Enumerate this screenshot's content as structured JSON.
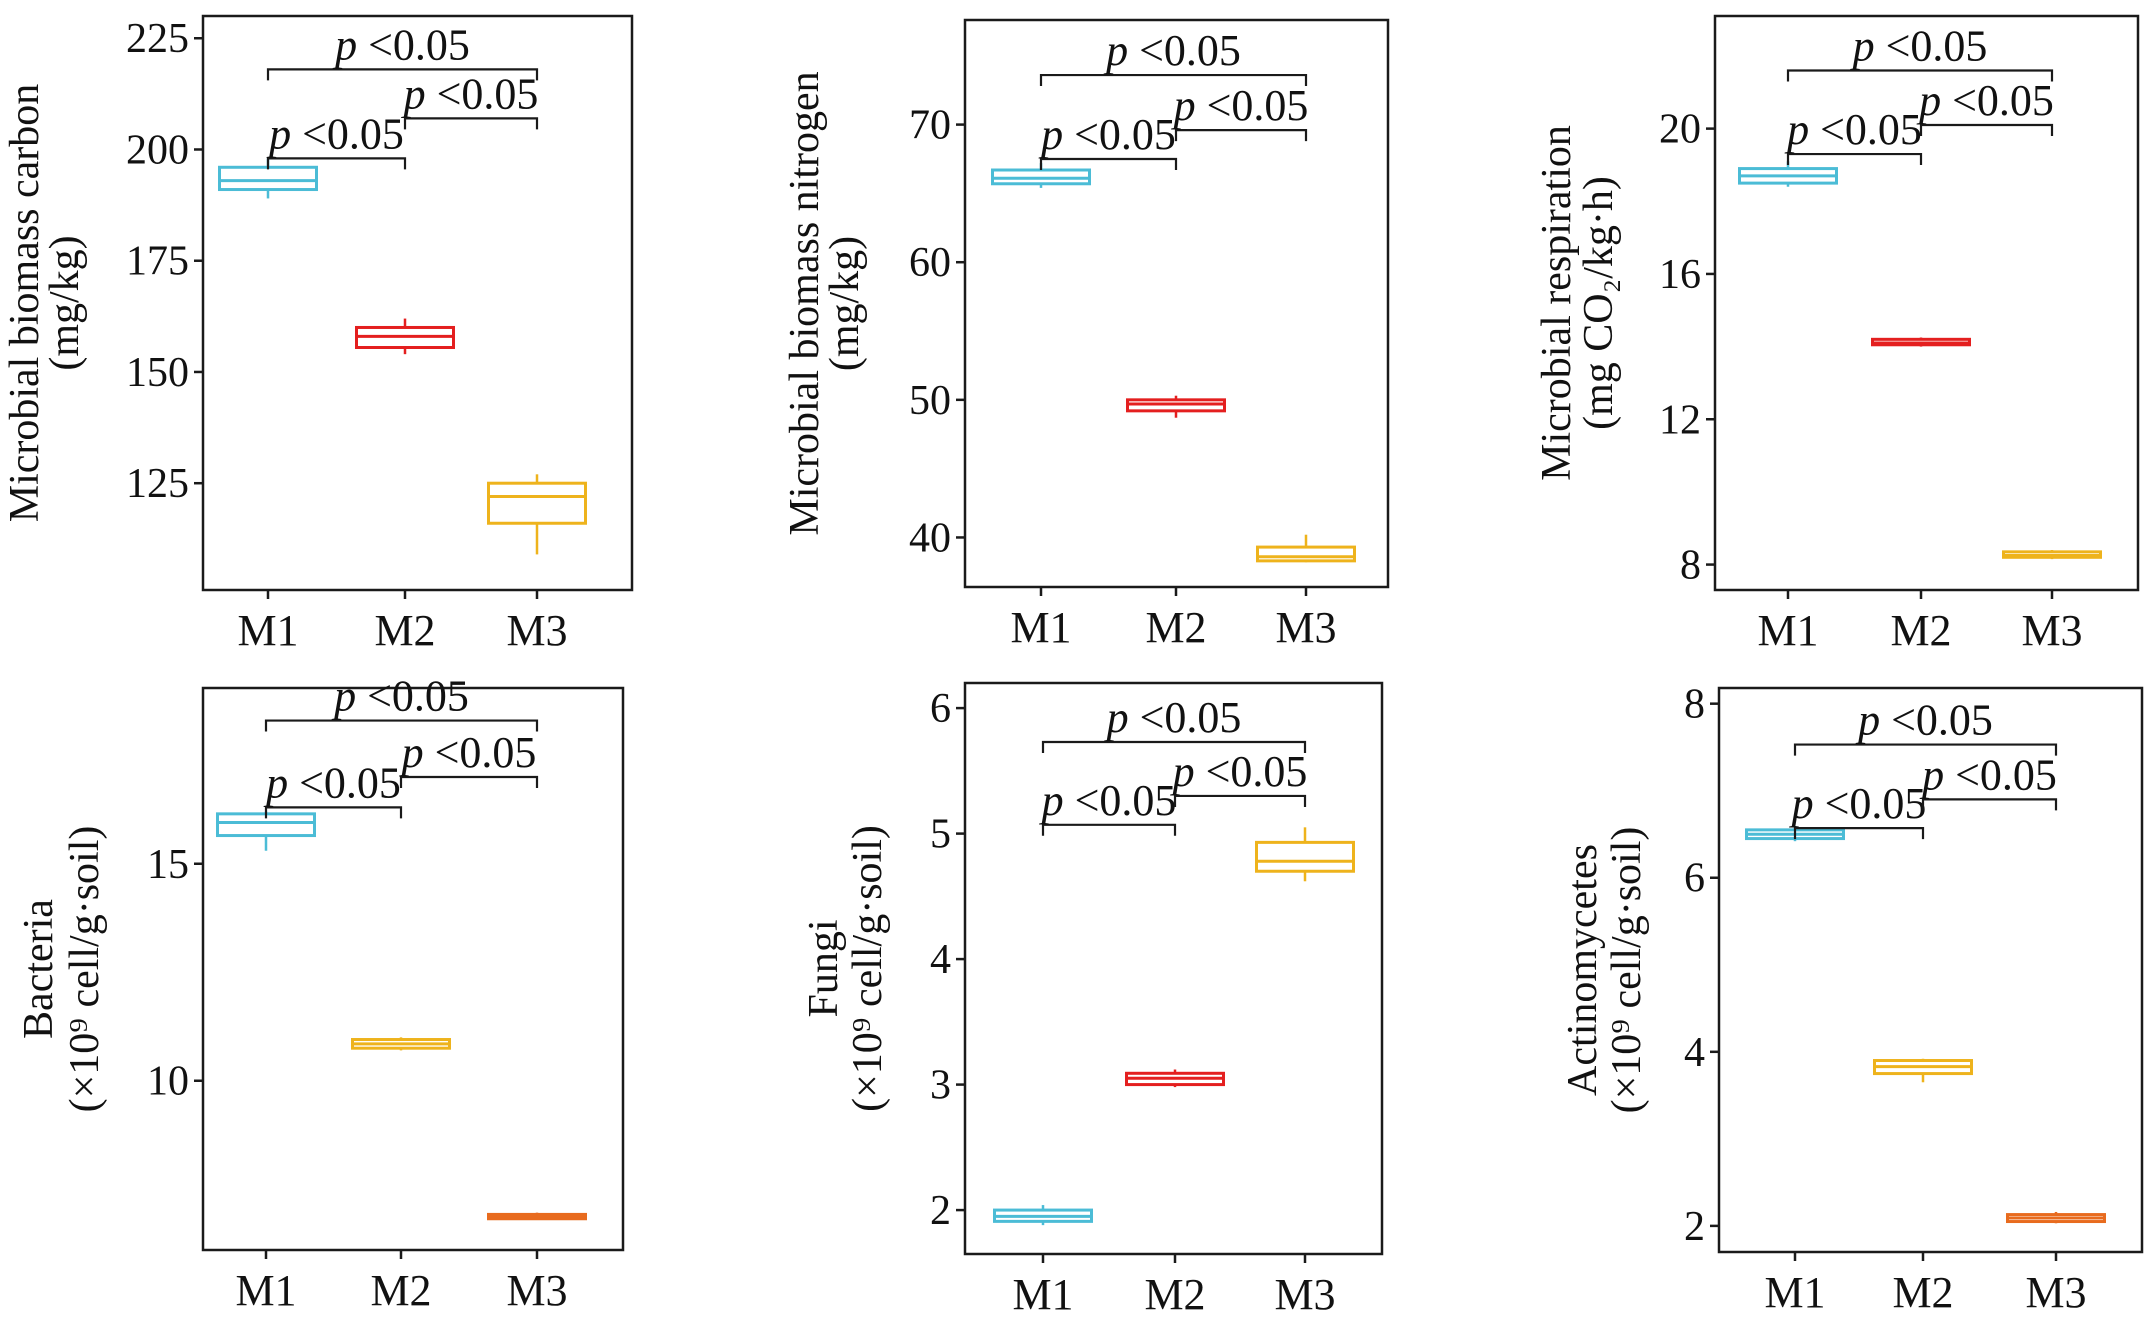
{
  "chart_data": [
    {
      "type": "box",
      "ylabel_line1": "Microbial biomass carbon",
      "ylabel_line2": "(mg/kg)",
      "categories": [
        "M1",
        "M2",
        "M3"
      ],
      "colors": [
        "#4bbcd6",
        "#e41f1f",
        "#eeb31c"
      ],
      "ylim": [
        101,
        230
      ],
      "yticks": [
        "125",
        "150",
        "175",
        "200",
        "225"
      ],
      "boxes": [
        {
          "min": 189,
          "q1": 191,
          "median": 193,
          "q3": 196,
          "max": 198
        },
        {
          "min": 154,
          "q1": 155.5,
          "median": 158,
          "q3": 160,
          "max": 162
        },
        {
          "min": 109,
          "q1": 116,
          "median": 122,
          "q3": 125,
          "max": 127
        }
      ],
      "brackets": [
        {
          "from": 0,
          "to": 2,
          "level": 218,
          "text": "<0.05"
        },
        {
          "from": 0,
          "to": 1,
          "level": 198,
          "text": "<0.05"
        },
        {
          "from": 1,
          "to": 2,
          "level": 207,
          "text": "<0.05"
        }
      ]
    },
    {
      "type": "box",
      "ylabel_line1": "Microbial biomass nitrogen",
      "ylabel_line2": "(mg/kg)",
      "categories": [
        "M1",
        "M2",
        "M3"
      ],
      "colors": [
        "#4bbcd6",
        "#e41f1f",
        "#eeb31c"
      ],
      "ylim": [
        36.4,
        77.6
      ],
      "yticks": [
        "40",
        "50",
        "60",
        "70"
      ],
      "boxes": [
        {
          "min": 65.4,
          "q1": 65.7,
          "median": 66.1,
          "q3": 66.7,
          "max": 67.2
        },
        {
          "min": 48.7,
          "q1": 49.2,
          "median": 49.7,
          "q3": 50,
          "max": 50.3
        },
        {
          "min": 38.2,
          "q1": 38.3,
          "median": 38.6,
          "q3": 39.3,
          "max": 40.2
        }
      ],
      "brackets": [
        {
          "from": 0,
          "to": 2,
          "level": 73.6,
          "text": "<0.05"
        },
        {
          "from": 0,
          "to": 1,
          "level": 67.5,
          "text": "<0.05"
        },
        {
          "from": 1,
          "to": 2,
          "level": 69.6,
          "text": "<0.05"
        }
      ]
    },
    {
      "type": "box",
      "ylabel_line1": "Microbial respiration",
      "ylabel_line2": "(mg CO₂/kg·h)",
      "categories": [
        "M1",
        "M2",
        "M3"
      ],
      "colors": [
        "#4bbcd6",
        "#e41f1f",
        "#eeb31c"
      ],
      "ylim": [
        7.3,
        23.1
      ],
      "yticks": [
        "8",
        "12",
        "16",
        "20"
      ],
      "boxes": [
        {
          "min": 18.4,
          "q1": 18.5,
          "median": 18.7,
          "q3": 18.9,
          "max": 19.1
        },
        {
          "min": 14,
          "q1": 14.05,
          "median": 14.1,
          "q3": 14.2,
          "max": 14.25
        },
        {
          "min": 8.15,
          "q1": 8.2,
          "median": 8.25,
          "q3": 8.35,
          "max": 8.4
        }
      ],
      "brackets": [
        {
          "from": 0,
          "to": 2,
          "level": 21.6,
          "text": "<0.05"
        },
        {
          "from": 0,
          "to": 1,
          "level": 19.3,
          "text": "<0.05"
        },
        {
          "from": 1,
          "to": 2,
          "level": 20.1,
          "text": "<0.05"
        }
      ]
    },
    {
      "type": "box",
      "ylabel_line1": "Bacteria",
      "ylabel_line2": "(×10⁹ cell/g·soil)",
      "categories": [
        "M1",
        "M2",
        "M3"
      ],
      "colors": [
        "#4bbcd6",
        "#eeb31c",
        "#e86b1e"
      ],
      "ylim": [
        6.1,
        19.05
      ],
      "yticks": [
        "10",
        "15"
      ],
      "boxes": [
        {
          "min": 15.3,
          "q1": 15.65,
          "median": 15.95,
          "q3": 16.15,
          "max": 16.2
        },
        {
          "min": 10.7,
          "q1": 10.75,
          "median": 10.85,
          "q3": 10.95,
          "max": 11.0
        },
        {
          "min": 6.8,
          "q1": 6.82,
          "median": 6.87,
          "q3": 6.92,
          "max": 6.96
        }
      ],
      "brackets": [
        {
          "from": 0,
          "to": 2,
          "level": 18.3,
          "text": "<0.05"
        },
        {
          "from": 0,
          "to": 1,
          "level": 16.3,
          "text": "<0.05"
        },
        {
          "from": 1,
          "to": 2,
          "level": 17.0,
          "text": "<0.05"
        }
      ]
    },
    {
      "type": "box",
      "ylabel_line1": "Fungi",
      "ylabel_line2": "(×10⁹ cell/g·soil)",
      "categories": [
        "M1",
        "M2",
        "M3"
      ],
      "colors": [
        "#4bbcd6",
        "#e41f1f",
        "#eeb31c"
      ],
      "ylim": [
        1.65,
        6.2
      ],
      "yticks": [
        "2",
        "3",
        "4",
        "5",
        "6"
      ],
      "boxes": [
        {
          "min": 1.88,
          "q1": 1.91,
          "median": 1.95,
          "q3": 2.0,
          "max": 2.04
        },
        {
          "min": 2.98,
          "q1": 3.0,
          "median": 3.05,
          "q3": 3.09,
          "max": 3.12
        },
        {
          "min": 4.62,
          "q1": 4.7,
          "median": 4.78,
          "q3": 4.93,
          "max": 5.05
        }
      ],
      "brackets": [
        {
          "from": 0,
          "to": 2,
          "level": 5.73,
          "text": "<0.05"
        },
        {
          "from": 0,
          "to": 1,
          "level": 5.07,
          "text": "<0.05"
        },
        {
          "from": 1,
          "to": 2,
          "level": 5.3,
          "text": "<0.05"
        }
      ]
    },
    {
      "type": "box",
      "ylabel_line1": "Actinomycetes",
      "ylabel_line2": "(×10⁹ cell/g·soil)",
      "categories": [
        "M1",
        "M2",
        "M3"
      ],
      "colors": [
        "#4bbcd6",
        "#eeb31c",
        "#e86b1e"
      ],
      "ylim": [
        1.7,
        8.18
      ],
      "yticks": [
        "2",
        "4",
        "6",
        "8"
      ],
      "boxes": [
        {
          "min": 6.42,
          "q1": 6.45,
          "median": 6.5,
          "q3": 6.55,
          "max": 6.58
        },
        {
          "min": 3.65,
          "q1": 3.75,
          "median": 3.83,
          "q3": 3.9,
          "max": 3.92
        },
        {
          "min": 2.03,
          "q1": 2.05,
          "median": 2.09,
          "q3": 2.13,
          "max": 2.16
        }
      ],
      "brackets": [
        {
          "from": 0,
          "to": 2,
          "level": 7.53,
          "text": "<0.05"
        },
        {
          "from": 0,
          "to": 1,
          "level": 6.57,
          "text": "<0.05"
        },
        {
          "from": 1,
          "to": 2,
          "level": 6.9,
          "text": "<0.05"
        }
      ]
    }
  ]
}
